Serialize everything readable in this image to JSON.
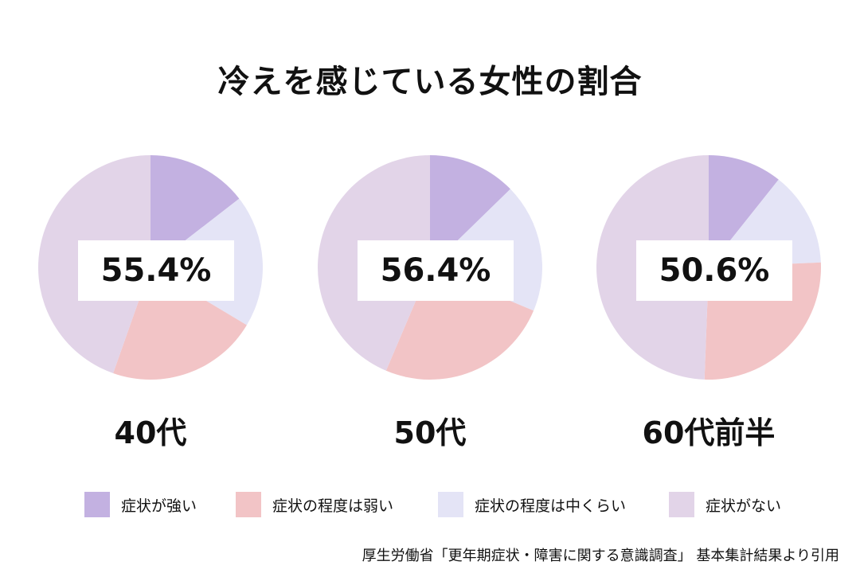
{
  "title": "冷えを感じている女性の割合",
  "chart_data": {
    "type": "pie",
    "categories": [
      "症状が強い",
      "症状の程度は弱い",
      "症状の程度は中くらい",
      "症状がない"
    ],
    "colors": [
      "#c3b1e1",
      "#f2c4c6",
      "#e4e4f6",
      "#e2d4e8"
    ],
    "pies": [
      {
        "label": "40代",
        "total_text": "55.4%",
        "values": [
          14.5,
          21.8,
          19.1,
          44.6
        ]
      },
      {
        "label": "50代",
        "total_text": "56.4%",
        "values": [
          12.7,
          25.1,
          18.6,
          43.6
        ]
      },
      {
        "label": "60代前半",
        "total_text": "50.6%",
        "values": [
          10.7,
          26.3,
          13.6,
          49.4
        ]
      }
    ],
    "legend_position": "bottom"
  },
  "source": "厚生労働省「更年期症状・障害に関する意識調査」 基本集計結果より引用"
}
